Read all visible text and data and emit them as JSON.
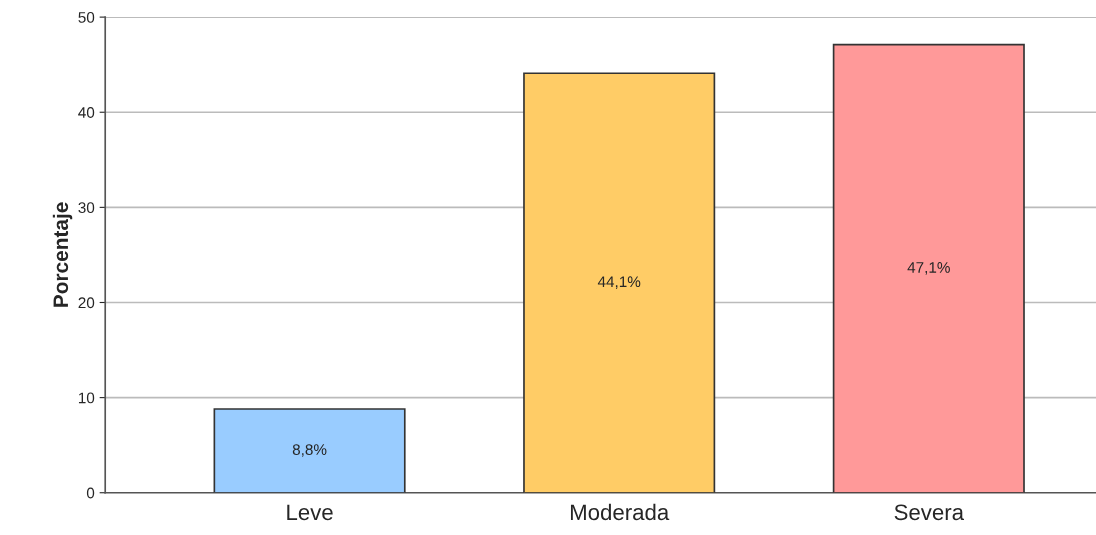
{
  "chart_data": {
    "type": "bar",
    "ylabel": "Porcentaje",
    "categories": [
      "Leve",
      "Moderada",
      "Severa"
    ],
    "values": [
      8.8,
      44.1,
      47.1
    ],
    "colors": [
      "#99ccff",
      "#ffcc66",
      "#ff9999"
    ],
    "value_labels": [
      "8,8%",
      "44,1%",
      "47,1%"
    ],
    "ylim": [
      0,
      50
    ],
    "yticks": [
      0,
      10,
      20,
      30,
      40,
      50
    ],
    "grid": "y",
    "legend": false
  }
}
